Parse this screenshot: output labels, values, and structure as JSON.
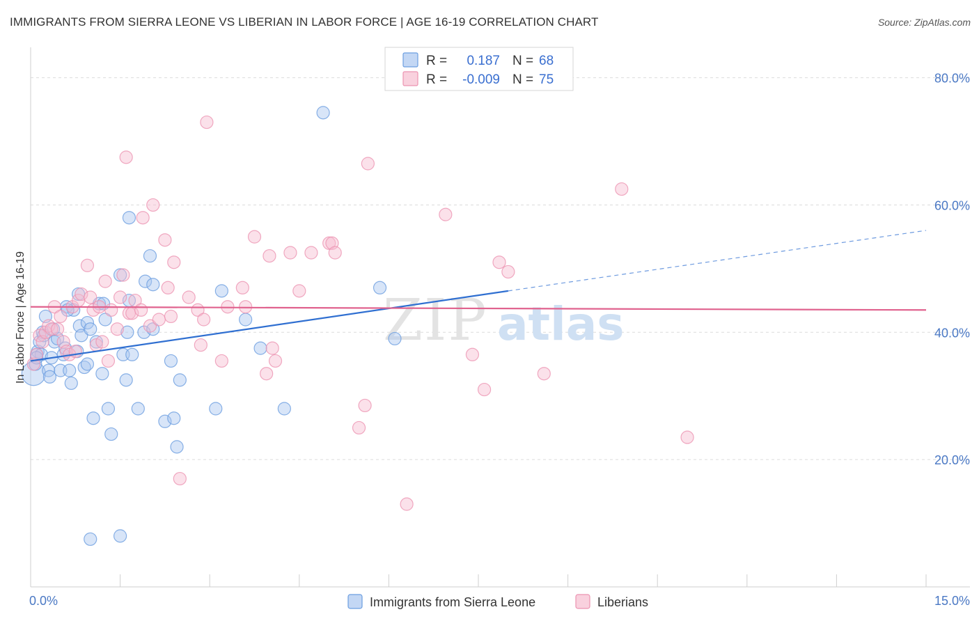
{
  "header": {
    "title": "IMMIGRANTS FROM SIERRA LEONE VS LIBERIAN IN LABOR FORCE | AGE 16-19 CORRELATION CHART",
    "source": "Source: ZipAtlas.com"
  },
  "watermark": {
    "zip": "ZIP",
    "atlas": "atlas"
  },
  "legend": {
    "r_label": "R =",
    "n_label": "N =",
    "items": [
      {
        "r": "0.187",
        "n": "68",
        "color": "#7aaae6"
      },
      {
        "r": "-0.009",
        "n": "75",
        "color": "#f0a0bc"
      }
    ]
  },
  "colors": {
    "blue_fill": "#a9c6ef",
    "blue_stroke": "#6b9ee0",
    "blue_line": "#2f6fd1",
    "pink_fill": "#f6bdd0",
    "pink_stroke": "#ec93b1",
    "pink_line": "#e0628e"
  },
  "chart_data": {
    "type": "scatter",
    "title": "IMMIGRANTS FROM SIERRA LEONE VS LIBERIAN IN LABOR FORCE | AGE 16-19 CORRELATION CHART",
    "xlabel": "",
    "ylabel": "In Labor Force | Age 16-19",
    "xlim": [
      0,
      15
    ],
    "ylim": [
      0,
      84
    ],
    "x_ticks": [
      "0.0%",
      "15.0%"
    ],
    "y_ticks": [
      {
        "value": 20,
        "label": "20.0%"
      },
      {
        "value": 40,
        "label": "40.0%"
      },
      {
        "value": 60,
        "label": "60.0%"
      },
      {
        "value": 80,
        "label": "80.0%"
      }
    ],
    "grid": true,
    "legend_position": "top-center",
    "series": [
      {
        "name": "Immigrants from Sierra Leone",
        "r": 0.187,
        "n": 68,
        "trend": {
          "x0": 0,
          "y0": 35.5,
          "x1": 8.0,
          "y1": 46.5,
          "dash_to_x": 15.0,
          "dash_to_y": 56.0
        },
        "points": [
          [
            0.05,
            33.5
          ],
          [
            0.08,
            35.0
          ],
          [
            0.1,
            36.5
          ],
          [
            0.12,
            37.0
          ],
          [
            0.15,
            38.5
          ],
          [
            0.18,
            36.5
          ],
          [
            0.2,
            40.0
          ],
          [
            0.25,
            42.5
          ],
          [
            0.3,
            34.0
          ],
          [
            0.32,
            33.0
          ],
          [
            0.35,
            36.0
          ],
          [
            0.4,
            38.5
          ],
          [
            0.45,
            39.0
          ],
          [
            0.5,
            34.0
          ],
          [
            0.55,
            36.5
          ],
          [
            0.6,
            44.0
          ],
          [
            0.65,
            34.0
          ],
          [
            0.68,
            32.0
          ],
          [
            0.72,
            43.5
          ],
          [
            0.78,
            37.0
          ],
          [
            0.8,
            46.0
          ],
          [
            0.82,
            41.0
          ],
          [
            0.85,
            39.5
          ],
          [
            0.9,
            34.5
          ],
          [
            0.95,
            41.5
          ],
          [
            0.95,
            35.0
          ],
          [
            1.0,
            40.5
          ],
          [
            1.05,
            26.5
          ],
          [
            1.1,
            38.5
          ],
          [
            1.15,
            44.5
          ],
          [
            1.2,
            33.5
          ],
          [
            1.22,
            44.5
          ],
          [
            1.25,
            42.0
          ],
          [
            1.3,
            28.0
          ],
          [
            1.35,
            24.0
          ],
          [
            1.5,
            49.0
          ],
          [
            1.55,
            36.5
          ],
          [
            1.6,
            32.5
          ],
          [
            1.62,
            40.0
          ],
          [
            1.65,
            45.0
          ],
          [
            1.7,
            36.5
          ],
          [
            1.65,
            58.0
          ],
          [
            1.8,
            28.0
          ],
          [
            1.9,
            40.0
          ],
          [
            1.92,
            48.0
          ],
          [
            2.0,
            52.0
          ],
          [
            2.05,
            47.5
          ],
          [
            2.05,
            40.5
          ],
          [
            2.25,
            26.0
          ],
          [
            2.35,
            35.5
          ],
          [
            2.4,
            26.5
          ],
          [
            2.45,
            22.0
          ],
          [
            2.5,
            32.5
          ],
          [
            3.1,
            28.0
          ],
          [
            3.2,
            46.5
          ],
          [
            3.6,
            42.0
          ],
          [
            3.85,
            37.5
          ],
          [
            4.25,
            28.0
          ],
          [
            4.9,
            74.5
          ],
          [
            5.85,
            47.0
          ],
          [
            6.1,
            39.0
          ],
          [
            1.0,
            7.5
          ],
          [
            1.5,
            8.0
          ],
          [
            0.1,
            36.0
          ],
          [
            0.22,
            39.5
          ],
          [
            0.38,
            40.5
          ],
          [
            0.58,
            37.5
          ],
          [
            0.62,
            43.5
          ]
        ]
      },
      {
        "name": "Liberians",
        "r": -0.009,
        "n": 75,
        "trend": {
          "x0": 0,
          "y0": 44.0,
          "x1": 15.0,
          "y1": 43.5
        },
        "points": [
          [
            0.05,
            35.0
          ],
          [
            0.1,
            36.5
          ],
          [
            0.15,
            39.5
          ],
          [
            0.2,
            38.5
          ],
          [
            0.25,
            40.0
          ],
          [
            0.3,
            41.0
          ],
          [
            0.35,
            40.5
          ],
          [
            0.4,
            44.0
          ],
          [
            0.45,
            40.5
          ],
          [
            0.5,
            42.5
          ],
          [
            0.55,
            38.5
          ],
          [
            0.6,
            37.0
          ],
          [
            0.65,
            36.5
          ],
          [
            0.7,
            44.0
          ],
          [
            0.75,
            37.0
          ],
          [
            0.8,
            45.0
          ],
          [
            0.85,
            46.0
          ],
          [
            0.95,
            50.5
          ],
          [
            1.0,
            45.5
          ],
          [
            1.05,
            43.5
          ],
          [
            1.1,
            38.0
          ],
          [
            1.15,
            44.0
          ],
          [
            1.2,
            38.5
          ],
          [
            1.25,
            48.0
          ],
          [
            1.3,
            35.5
          ],
          [
            1.35,
            43.5
          ],
          [
            1.45,
            40.5
          ],
          [
            1.5,
            45.5
          ],
          [
            1.55,
            49.0
          ],
          [
            1.6,
            67.5
          ],
          [
            1.65,
            43.0
          ],
          [
            1.7,
            43.0
          ],
          [
            1.75,
            45.0
          ],
          [
            1.85,
            43.5
          ],
          [
            1.88,
            58.0
          ],
          [
            2.0,
            41.0
          ],
          [
            2.05,
            60.0
          ],
          [
            2.15,
            42.0
          ],
          [
            2.25,
            54.5
          ],
          [
            2.3,
            47.0
          ],
          [
            2.35,
            42.5
          ],
          [
            2.4,
            51.0
          ],
          [
            2.5,
            17.0
          ],
          [
            2.65,
            45.5
          ],
          [
            2.8,
            43.5
          ],
          [
            2.85,
            38.0
          ],
          [
            2.9,
            42.0
          ],
          [
            2.95,
            73.0
          ],
          [
            3.2,
            35.5
          ],
          [
            3.3,
            44.0
          ],
          [
            3.55,
            47.0
          ],
          [
            3.6,
            44.0
          ],
          [
            3.75,
            55.0
          ],
          [
            3.95,
            33.5
          ],
          [
            4.0,
            52.0
          ],
          [
            4.05,
            37.5
          ],
          [
            4.1,
            35.5
          ],
          [
            4.35,
            52.5
          ],
          [
            4.5,
            46.5
          ],
          [
            4.7,
            52.5
          ],
          [
            5.0,
            54.0
          ],
          [
            5.05,
            54.0
          ],
          [
            5.1,
            52.5
          ],
          [
            5.5,
            25.0
          ],
          [
            5.6,
            28.5
          ],
          [
            5.65,
            66.5
          ],
          [
            6.3,
            13.0
          ],
          [
            6.95,
            58.5
          ],
          [
            7.6,
            31.0
          ],
          [
            7.4,
            36.5
          ],
          [
            7.85,
            51.0
          ],
          [
            8.0,
            49.5
          ],
          [
            8.6,
            33.5
          ],
          [
            9.9,
            62.5
          ],
          [
            11.0,
            23.5
          ]
        ]
      }
    ]
  },
  "bottom_legend": [
    {
      "label": "Immigrants from Sierra Leone"
    },
    {
      "label": "Liberians"
    }
  ]
}
